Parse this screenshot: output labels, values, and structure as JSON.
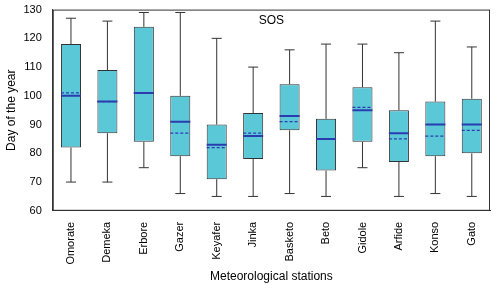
{
  "chart_data": {
    "type": "box",
    "title": "SOS",
    "x_label": "Meteorological stations",
    "y_label": "Day of the year",
    "categories": [
      "Omorate",
      "Demeka",
      "Erbore",
      "Gazer",
      "Keyafer",
      "Jinka",
      "Basketo",
      "Beto",
      "Gidole",
      "Arfide",
      "Konso",
      "Gato"
    ],
    "min": [
      70,
      70,
      75,
      66,
      65,
      65,
      66,
      65,
      75,
      65,
      66,
      65
    ],
    "q1": [
      82,
      87,
      84,
      79,
      71,
      78,
      88,
      74,
      84,
      77,
      79,
      80
    ],
    "median": [
      100,
      98,
      101,
      91,
      83,
      86,
      93,
      85,
      95,
      87,
      90,
      90
    ],
    "q3": [
      118,
      109,
      124,
      100,
      90,
      94,
      104,
      92,
      103,
      95,
      98,
      99
    ],
    "max": [
      127,
      126,
      129,
      129,
      120,
      110,
      116,
      118,
      118,
      115,
      126,
      117
    ],
    "mean": [
      101,
      98,
      101,
      87,
      82,
      87,
      91,
      85,
      96,
      85,
      86,
      88
    ],
    "color": "#5bc8d8",
    "ylim": [
      60,
      130
    ],
    "yticks": [
      60,
      70,
      80,
      90,
      100,
      110,
      120,
      130
    ],
    "grid": false
  }
}
